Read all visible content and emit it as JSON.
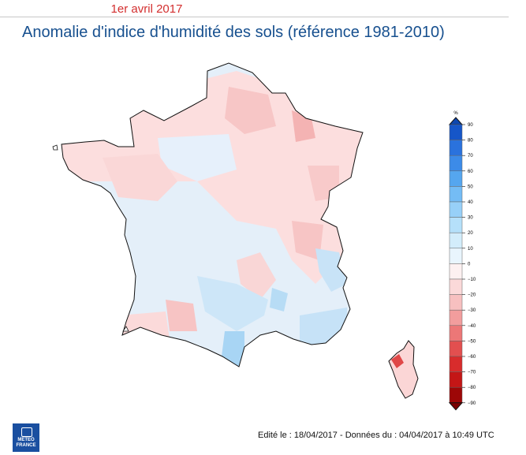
{
  "header": {
    "date": "1er avril 2017",
    "title": "Anomalie d'indice d'humidité des sols (référence 1981-2010)"
  },
  "legend": {
    "unit": "%",
    "ticks": [
      90,
      80,
      70,
      60,
      50,
      40,
      30,
      20,
      10,
      0,
      -10,
      -20,
      -30,
      -40,
      -50,
      -60,
      -70,
      -80,
      -90
    ],
    "colors": [
      "#1656c8",
      "#2a72dd",
      "#3c8be8",
      "#55a6ef",
      "#74bcf5",
      "#97d0f8",
      "#b5e0fa",
      "#d3edfb",
      "#e9f5fd",
      "#fdf1f1",
      "#fbd9d9",
      "#f7c0c0",
      "#f29d9d",
      "#ec7777",
      "#e24f4f",
      "#d82c2c",
      "#c41616",
      "#9d0707"
    ]
  },
  "footer": {
    "text": "Edité le : 18/04/2017 - Données du : 04/04/2017 à 10:49 UTC"
  },
  "logo": {
    "line1": "METEO",
    "line2": "FRANCE"
  }
}
